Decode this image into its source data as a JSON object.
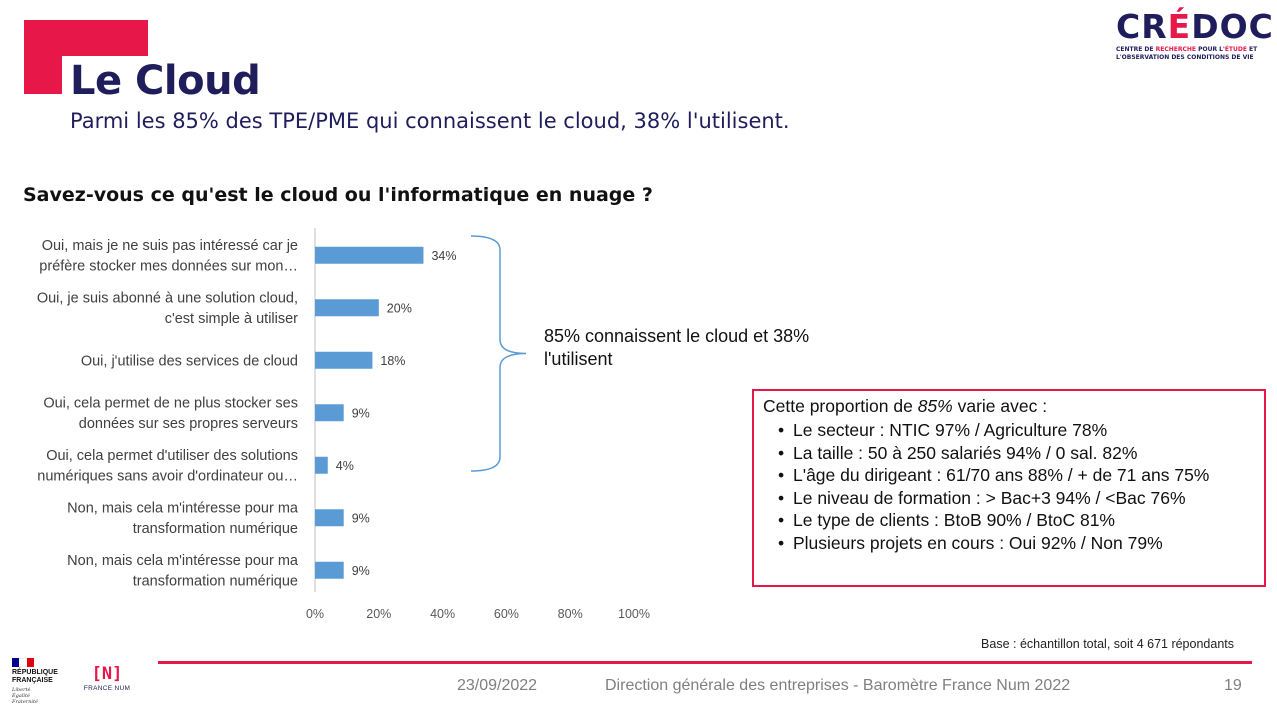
{
  "header": {
    "title": "Le Cloud",
    "subtitle": "Parmi les 85% des TPE/PME qui connaissent le cloud, 38% l'utilisent."
  },
  "logo": {
    "word_part1": "CR",
    "word_accent": "É",
    "word_part2": "DOC",
    "line1_a": "CENTRE DE ",
    "line1_b": "RECHERCHE",
    "line1_c": " POUR L'",
    "line1_d": "ÉTUDE",
    "line1_e": " ET",
    "line2": "L'OBSERVATION DES CONDITIONS DE VIE"
  },
  "question": "Savez-vous ce qu'est le cloud ou l'informatique en nuage ?",
  "chart_data": {
    "type": "bar",
    "orientation": "horizontal",
    "categories": [
      [
        "Oui, mais je ne suis pas intéressé car je",
        "préfère stocker mes données sur mon…"
      ],
      [
        "Oui, je suis abonné à une solution cloud,",
        "c'est simple à utiliser"
      ],
      [
        "Oui, j'utilise des services de cloud"
      ],
      [
        "Oui, cela permet de ne plus stocker ses",
        "données sur ses propres serveurs"
      ],
      [
        "Oui, cela permet d'utiliser des solutions",
        "numériques sans avoir d'ordinateur ou…"
      ],
      [
        "Non, mais cela m'intéresse pour ma",
        "transformation numérique"
      ],
      [
        "Non, mais cela m'intéresse pour ma",
        "transformation numérique"
      ]
    ],
    "values": [
      34,
      20,
      18,
      9,
      4,
      9,
      9
    ],
    "value_labels": [
      "34%",
      "20%",
      "18%",
      "9%",
      "4%",
      "9%",
      "9%"
    ],
    "x_ticks": [
      "0%",
      "20%",
      "40%",
      "60%",
      "80%",
      "100%"
    ],
    "xlim": [
      0,
      100
    ],
    "bar_color": "#5b9bd5",
    "grid": false
  },
  "brace_annotation": "85% connaissent le cloud et 38% l'utilisent",
  "info_box": {
    "intro_before": "Cette proportion de ",
    "intro_emph": "85%",
    "intro_after": " varie avec :",
    "items": [
      "Le secteur : NTIC 97% /  Agriculture 78%",
      "La taille : 50 à 250 salariés 94% / 0 sal. 82%",
      "L'âge du dirigeant :  61/70 ans 88% / + de 71 ans 75%",
      "Le niveau de formation : > Bac+3 94% / <Bac 76%",
      "Le type de clients : BtoB 90%  /  BtoC 81%",
      "Plusieurs projets en cours : Oui 92% / Non 79%"
    ]
  },
  "base_note": "Base : échantillon total, soit  4 671 répondants",
  "footer": {
    "date": "23/09/2022",
    "org": "Direction générale des entreprises - Baromètre France Num 2022",
    "page": "19",
    "rf_line1": "RÉPUBLIQUE",
    "rf_line2": "FRANÇAISE",
    "rf_motto1": "Liberté",
    "rf_motto2": "Égalité",
    "rf_motto3": "Fraternité",
    "fn_mark": "[N]",
    "fn_text": "FRANCE NUM"
  },
  "colors": {
    "accent": "#e8174a",
    "navy": "#1f1d5c",
    "bar": "#5b9bd5",
    "flag_blue": "#000091",
    "flag_white": "#ffffff",
    "flag_red": "#e1000f"
  }
}
